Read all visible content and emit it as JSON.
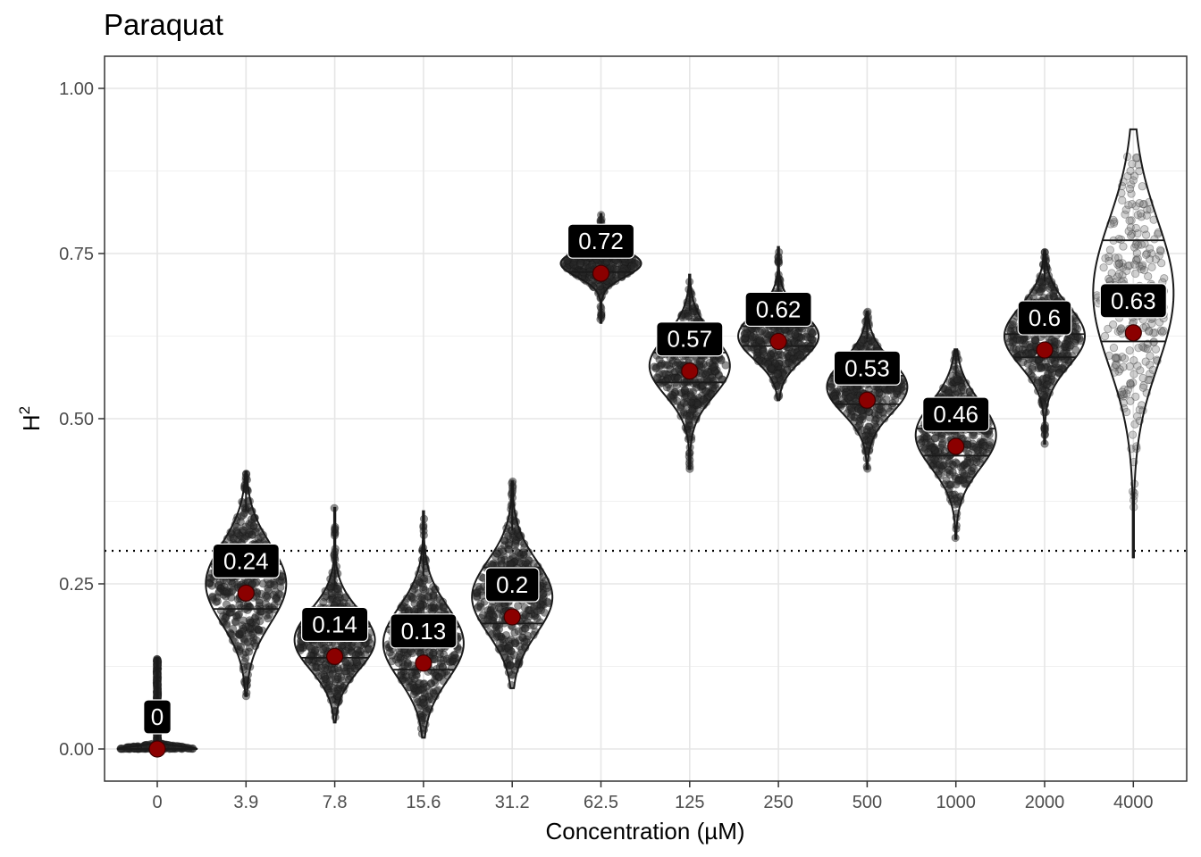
{
  "chart_data": {
    "type": "violin",
    "title": "Paraquat",
    "xlabel": "Concentration (µM)",
    "ylabel": "H",
    "ylabel_superscript": "2",
    "ylim": [
      -0.05,
      1.05
    ],
    "y_ticks": [
      "0.00",
      "0.25",
      "0.50",
      "0.75",
      "1.00"
    ],
    "y_tick_values": [
      0,
      0.25,
      0.5,
      0.75,
      1.0
    ],
    "threshold": 0.3,
    "grid": true,
    "colors": {
      "point_fill": "#8b0000",
      "label_bg": "#000000",
      "label_text": "#ffffff",
      "violin_stroke": "#1a1a1a",
      "threshold_line": "#000000"
    },
    "categories": [
      "0",
      "3.9",
      "7.8",
      "15.6",
      "31.2",
      "62.5",
      "125",
      "250",
      "500",
      "1000",
      "2000",
      "4000"
    ],
    "groups": [
      {
        "category": "0",
        "mean": 0.0,
        "label": "0",
        "min": 0.0,
        "max": 0.137,
        "q25": 0.0,
        "q75": 0.0,
        "mode": 0.0,
        "spread": 0.004
      },
      {
        "category": "3.9",
        "mean": 0.236,
        "label": "0.24",
        "min": 0.08,
        "max": 0.42,
        "q25": 0.212,
        "q75": 0.28,
        "mode": 0.25,
        "spread": 0.06
      },
      {
        "category": "7.8",
        "mean": 0.14,
        "label": "0.14",
        "min": 0.04,
        "max": 0.365,
        "q25": 0.138,
        "q75": 0.185,
        "mode": 0.165,
        "spread": 0.045
      },
      {
        "category": "15.6",
        "mean": 0.13,
        "label": "0.13",
        "min": 0.017,
        "max": 0.36,
        "q25": 0.12,
        "q75": 0.185,
        "mode": 0.16,
        "spread": 0.055
      },
      {
        "category": "31.2",
        "mean": 0.2,
        "label": "0.2",
        "min": 0.092,
        "max": 0.405,
        "q25": 0.19,
        "q75": 0.275,
        "mode": 0.23,
        "spread": 0.055
      },
      {
        "category": "62.5",
        "mean": 0.72,
        "label": "0.72",
        "min": 0.645,
        "max": 0.81,
        "q25": 0.722,
        "q75": 0.745,
        "mode": 0.735,
        "spread": 0.02
      },
      {
        "category": "125",
        "mean": 0.572,
        "label": "0.57",
        "min": 0.424,
        "max": 0.718,
        "q25": 0.555,
        "q75": 0.6,
        "mode": 0.58,
        "spread": 0.045
      },
      {
        "category": "250",
        "mean": 0.617,
        "label": "0.62",
        "min": 0.528,
        "max": 0.76,
        "q25": 0.61,
        "q75": 0.64,
        "mode": 0.625,
        "spread": 0.035
      },
      {
        "category": "500",
        "mean": 0.528,
        "label": "0.53",
        "min": 0.424,
        "max": 0.662,
        "q25": 0.522,
        "q75": 0.565,
        "mode": 0.548,
        "spread": 0.04
      },
      {
        "category": "1000",
        "mean": 0.458,
        "label": "0.46",
        "min": 0.318,
        "max": 0.605,
        "q25": 0.444,
        "q75": 0.485,
        "mode": 0.475,
        "spread": 0.05
      },
      {
        "category": "2000",
        "mean": 0.604,
        "label": "0.6",
        "min": 0.462,
        "max": 0.755,
        "q25": 0.593,
        "q75": 0.628,
        "mode": 0.625,
        "spread": 0.045
      },
      {
        "category": "4000",
        "mean": 0.63,
        "label": "0.63",
        "min": 0.29,
        "max": 0.938,
        "q25": 0.617,
        "q75": 0.77,
        "mode": 0.69,
        "spread": 0.11
      }
    ]
  }
}
